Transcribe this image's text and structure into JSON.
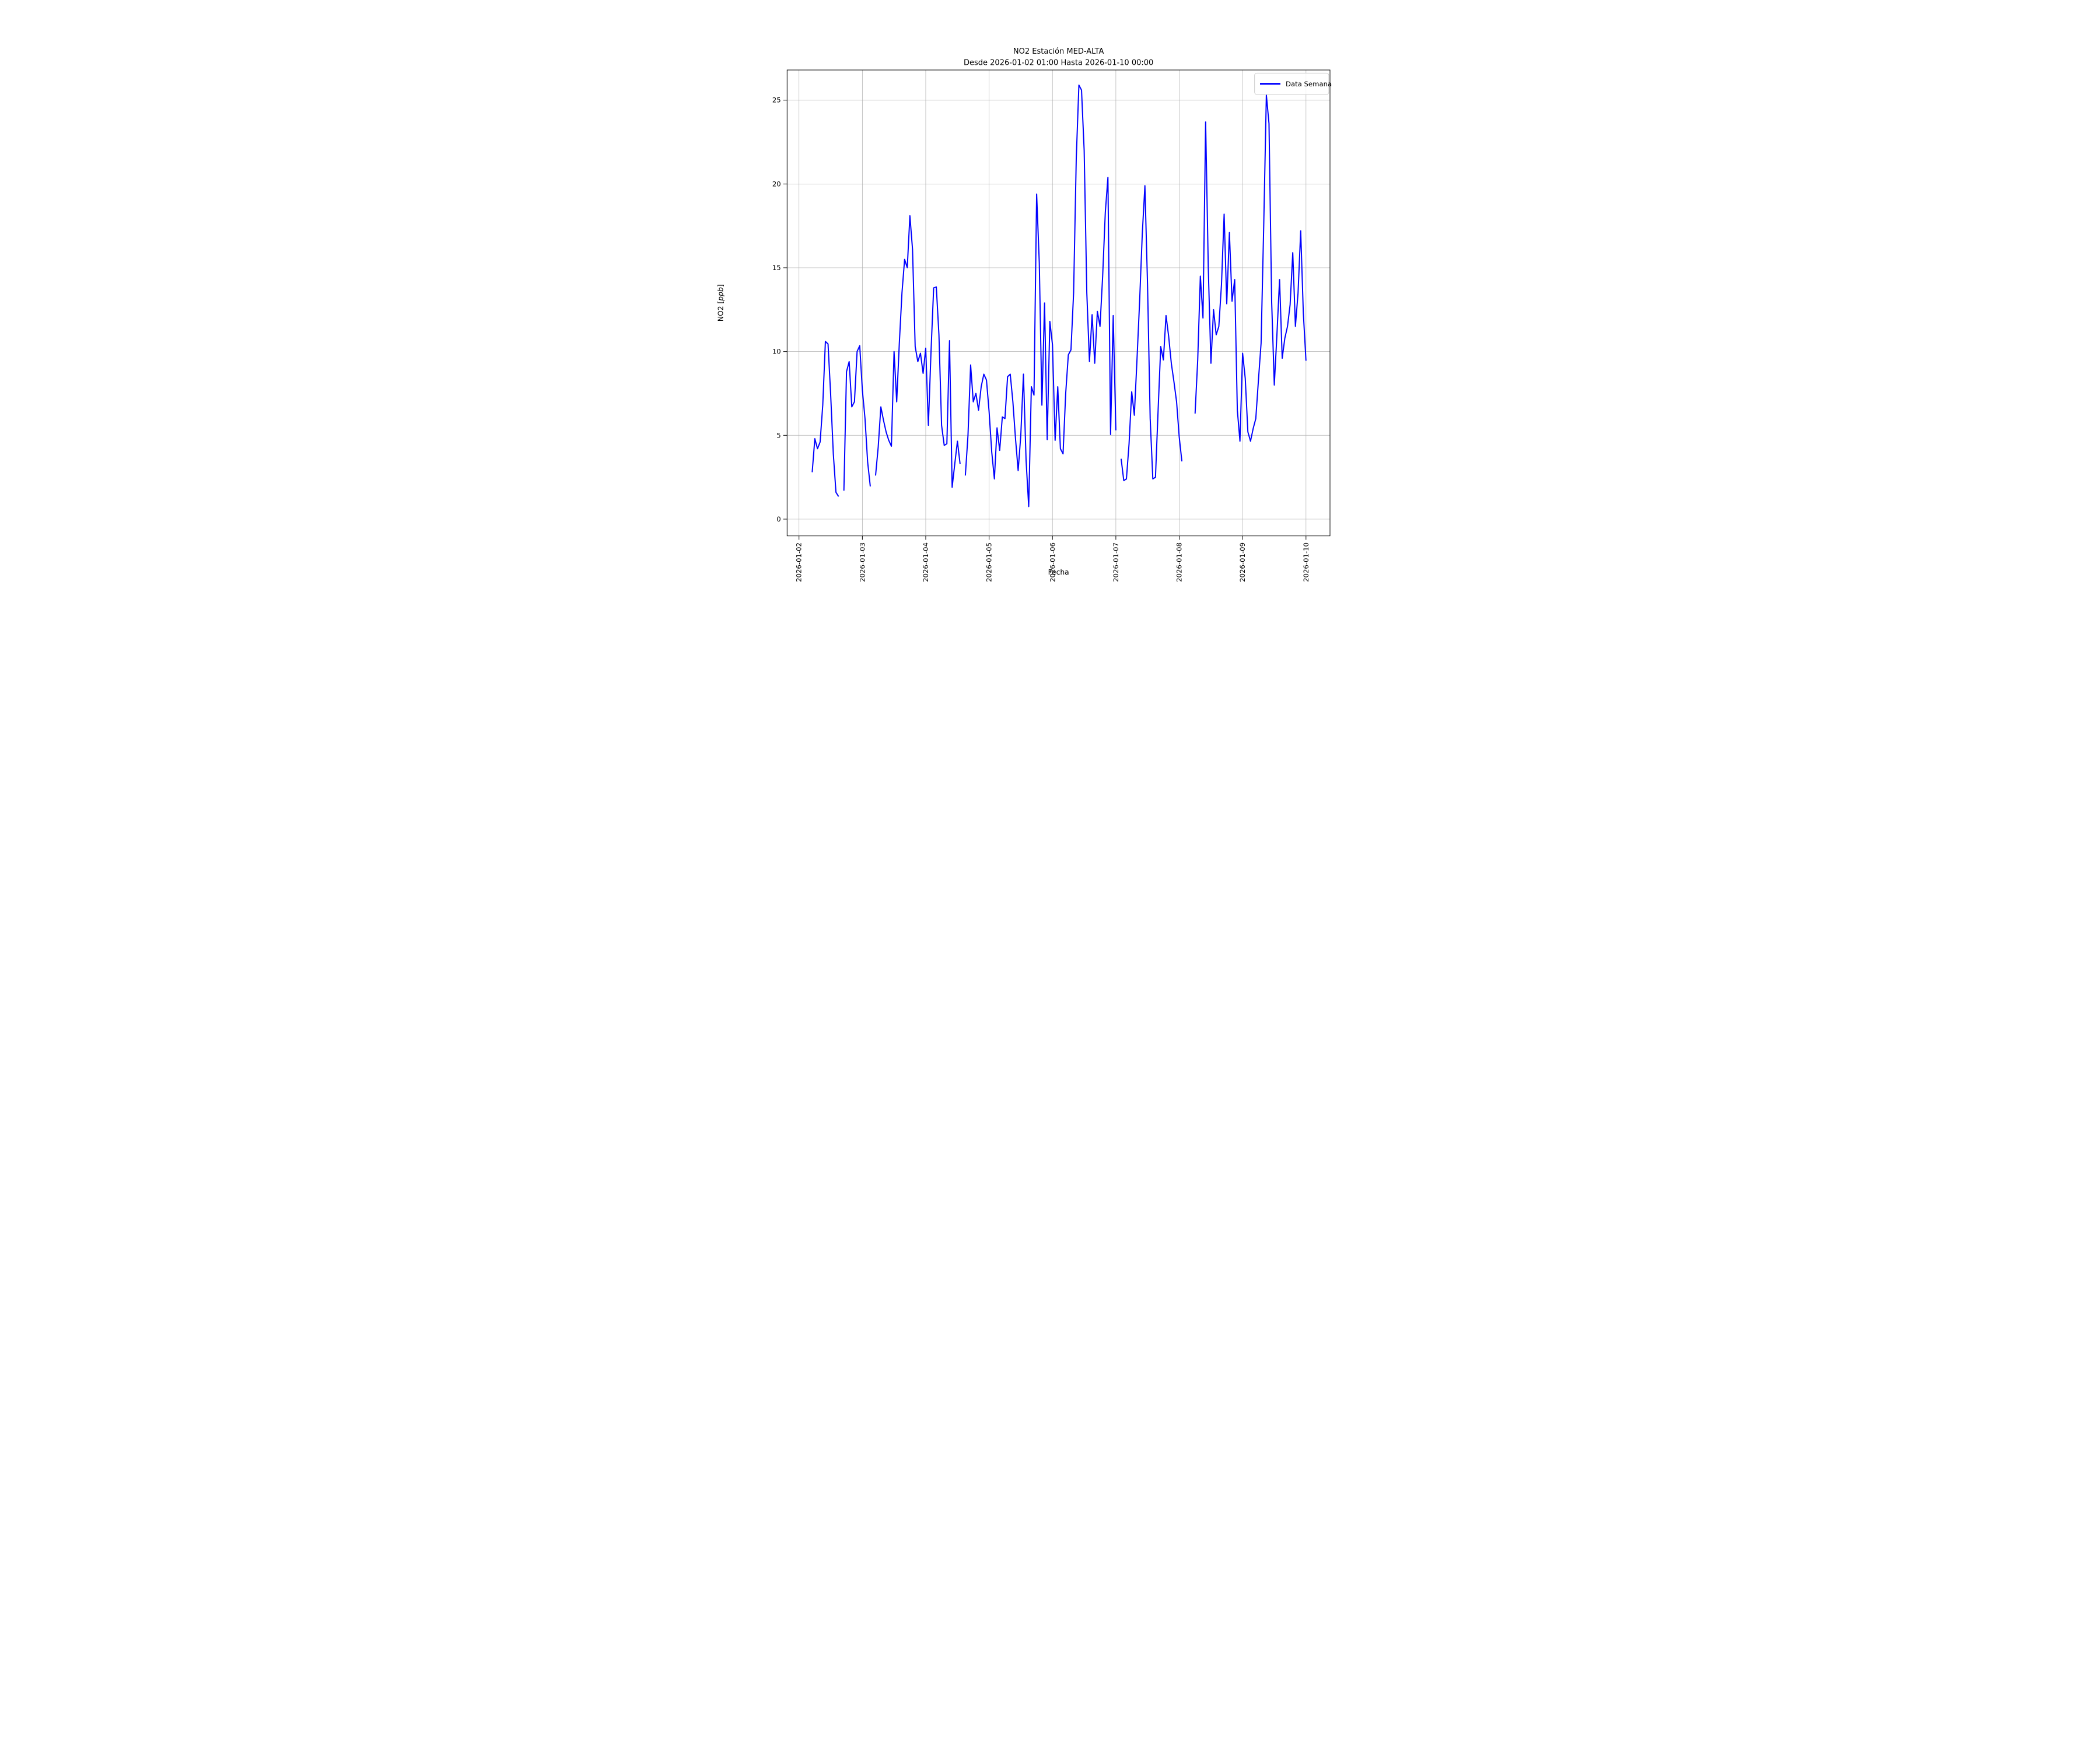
{
  "figure": {
    "title": "NO2 Estación MED-ALTA",
    "subtitle": "Desde 2026-01-02 01:00 Hasta 2026-01-10 00:00",
    "background_color": "#ffffff",
    "grid_color": "#b0b0b0",
    "spine_color": "#000000"
  },
  "legend": {
    "label": "Data Semana",
    "line_color": "#0000ff",
    "border_color": "#cccccc",
    "position": "upper right"
  },
  "axes": {
    "xlabel": "Fecha",
    "ylabel_prefix": "NO2 [",
    "ylabel_italic": "ppb",
    "ylabel_suffix": "]"
  },
  "chart_data": {
    "type": "line",
    "series": [
      {
        "name": "Data Semana",
        "color": "#0000ff",
        "start": "2026-01-02 01:00",
        "interval_hours": 1,
        "values": [
          null,
          null,
          null,
          null,
          2.8,
          4.8,
          4.2,
          4.6,
          6.8,
          10.6,
          10.45,
          7.4,
          3.9,
          1.6,
          1.35,
          null,
          1.7,
          8.8,
          9.4,
          6.7,
          7.0,
          10.0,
          10.35,
          7.7,
          6.0,
          3.4,
          1.95,
          null,
          2.6,
          4.3,
          6.7,
          5.9,
          5.2,
          4.7,
          4.35,
          10.0,
          7.0,
          10.5,
          13.5,
          15.5,
          15.0,
          18.1,
          16.1,
          10.3,
          9.4,
          9.9,
          8.7,
          10.2,
          5.6,
          10.0,
          13.8,
          13.85,
          11.0,
          5.6,
          4.4,
          4.5,
          10.65,
          1.9,
          3.3,
          4.65,
          3.3,
          null,
          2.6,
          5.0,
          9.2,
          7.0,
          7.5,
          6.5,
          7.9,
          8.65,
          8.3,
          6.4,
          4.0,
          2.4,
          5.45,
          4.1,
          6.1,
          6.0,
          8.5,
          8.65,
          7.0,
          4.8,
          2.9,
          5.0,
          8.65,
          3.5,
          0.75,
          7.9,
          7.4,
          19.4,
          15.3,
          6.8,
          12.9,
          4.75,
          11.8,
          10.4,
          4.7,
          7.9,
          4.2,
          3.9,
          7.5,
          9.8,
          10.1,
          13.5,
          21.5,
          25.9,
          25.6,
          22.0,
          13.5,
          9.4,
          12.2,
          9.3,
          12.4,
          11.5,
          14.5,
          18.3,
          20.4,
          5.05,
          12.15,
          5.3,
          null,
          3.6,
          2.3,
          2.4,
          4.5,
          7.6,
          6.2,
          9.5,
          13.0,
          17.0,
          19.9,
          14.0,
          6.0,
          2.4,
          2.5,
          6.5,
          10.3,
          9.5,
          12.15,
          10.9,
          9.3,
          8.2,
          7.0,
          4.9,
          3.45,
          null,
          null,
          null,
          null,
          6.3,
          9.5,
          14.5,
          12.0,
          23.7,
          15.0,
          9.3,
          12.5,
          11.0,
          11.5,
          14.0,
          18.2,
          12.85,
          17.1,
          13.0,
          14.3,
          6.5,
          4.65,
          9.9,
          8.4,
          5.2,
          4.65,
          5.4,
          6.0,
          8.3,
          10.5,
          17.5,
          25.3,
          23.6,
          13.0,
          8.0,
          11.0,
          14.3,
          9.6,
          10.8,
          11.5,
          12.8,
          15.9,
          11.5,
          13.5,
          17.2,
          12.3,
          9.45
        ]
      }
    ],
    "x_tick_labels": [
      "2026-01-02",
      "2026-01-03",
      "2026-01-04",
      "2026-01-05",
      "2026-01-06",
      "2026-01-07",
      "2026-01-08",
      "2026-01-09",
      "2026-01-10"
    ],
    "x_tick_hours": [
      0,
      24,
      48,
      72,
      96,
      120,
      144,
      168,
      192
    ],
    "y_ticks": [
      0,
      5,
      10,
      15,
      20,
      25
    ],
    "xlim_hours": [
      -4.5,
      201.1
    ],
    "ylim": [
      -1.0,
      26.8
    ],
    "grid": true,
    "title": "NO2 Estación MED-ALTA",
    "xlabel": "Fecha",
    "ylabel": "NO2 [ppb]",
    "legend_position": "upper right"
  }
}
